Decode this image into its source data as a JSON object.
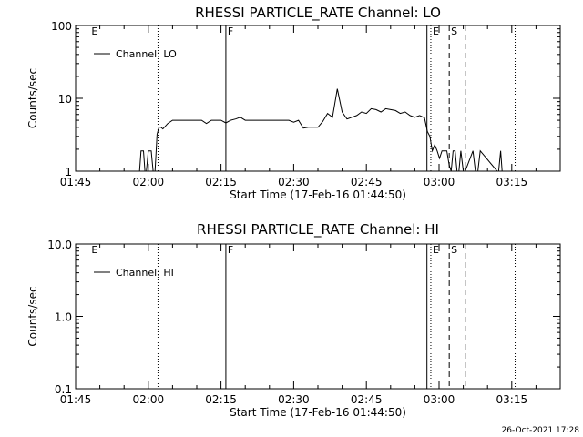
{
  "stamp": "26-Oct-2021 17:28",
  "chart_data": [
    {
      "type": "line",
      "title": "RHESSI PARTICLE_RATE Channel: LO",
      "xlabel": "Start Time (17-Feb-16 01:44:50)",
      "ylabel": "Counts/sec",
      "yscale": "log",
      "ylim": [
        1,
        100
      ],
      "xlim_minutes": [
        0,
        100
      ],
      "x_ticks": [
        "01:45",
        "02:00",
        "02:15",
        "02:30",
        "02:45",
        "03:00",
        "03:15"
      ],
      "y_ticks": [
        "1",
        "10",
        "100"
      ],
      "legend": "Channel: LO",
      "markers": [
        {
          "t": 2.9,
          "label": "E",
          "style": "text"
        },
        {
          "t": 17.0,
          "label": "",
          "style": "dotted"
        },
        {
          "t": 31.0,
          "label": "F",
          "style": "solid"
        },
        {
          "t": 72.5,
          "label": "",
          "style": "solid"
        },
        {
          "t": 73.3,
          "label": "E",
          "style": "dotted"
        },
        {
          "t": 77.1,
          "label": "S",
          "style": "dashed"
        },
        {
          "t": 80.4,
          "label": "",
          "style": "dashed"
        },
        {
          "t": 90.7,
          "label": "",
          "style": "dotted"
        }
      ],
      "series": [
        {
          "name": "Channel: LO",
          "t": [
            12.9,
            13.2,
            13.5,
            13.8,
            14.0,
            14.3,
            14.6,
            15.0,
            15.3,
            15.6,
            16.0,
            16.4,
            16.8,
            17.2,
            17.6,
            18.0,
            19,
            20,
            21,
            22,
            23,
            24,
            25,
            26,
            27,
            28,
            29,
            30,
            31,
            32,
            33,
            34,
            35,
            36,
            37,
            38,
            39,
            40,
            41,
            42,
            43,
            44,
            45,
            46,
            47,
            48,
            49,
            50,
            51,
            52,
            53,
            54,
            55,
            56,
            57,
            58,
            59,
            60,
            61,
            62,
            63,
            64,
            65,
            66,
            67,
            68,
            69,
            70,
            71,
            72,
            72.6,
            73.1,
            73.6,
            74.1,
            74.6,
            75.1,
            75.6,
            76.1,
            76.6,
            77.1,
            77.5,
            77.9,
            78.3,
            78.7,
            79.1,
            79.5,
            80.0,
            80.4,
            82.0,
            82.5,
            83.0,
            83.5,
            87.0,
            87.3,
            87.7,
            88.0
          ],
          "values": [
            1,
            1,
            1.9,
            1.9,
            1.9,
            1,
            1,
            1.9,
            1.9,
            1.9,
            1,
            1,
            3.2,
            4,
            4,
            3.8,
            4.5,
            5,
            5,
            5,
            5,
            5,
            5,
            5,
            4.5,
            5,
            5,
            5,
            4.6,
            5,
            5.2,
            5.5,
            5,
            5,
            5,
            5,
            5,
            5,
            5,
            5,
            5,
            5,
            4.7,
            5,
            3.9,
            4,
            4,
            4,
            4.8,
            6.2,
            5.5,
            13.5,
            6.5,
            5.2,
            5.5,
            5.8,
            6.5,
            6.2,
            7.2,
            7,
            6.5,
            7.2,
            7,
            6.8,
            6.2,
            6.5,
            5.8,
            5.5,
            5.8,
            5.4,
            3.5,
            3,
            1.9,
            2.3,
            1.9,
            1.5,
            1.9,
            1.9,
            1.9,
            1.2,
            1,
            1.9,
            1.9,
            1,
            1,
            1.9,
            1,
            1,
            1.9,
            1,
            1,
            1.9,
            1,
            1,
            1.9,
            1
          ]
        }
      ]
    },
    {
      "type": "line",
      "title": "RHESSI PARTICLE_RATE Channel: HI",
      "xlabel": "Start Time (17-Feb-16 01:44:50)",
      "ylabel": "Counts/sec",
      "yscale": "log",
      "ylim": [
        0.1,
        10
      ],
      "xlim_minutes": [
        0,
        100
      ],
      "x_ticks": [
        "01:45",
        "02:00",
        "02:15",
        "02:30",
        "02:45",
        "03:00",
        "03:15"
      ],
      "y_ticks": [
        "0.1",
        "1.0",
        "10.0"
      ],
      "legend": "Channel: HI",
      "markers": [
        {
          "t": 2.9,
          "label": "E",
          "style": "text"
        },
        {
          "t": 17.0,
          "label": "",
          "style": "dotted"
        },
        {
          "t": 31.0,
          "label": "F",
          "style": "solid"
        },
        {
          "t": 72.5,
          "label": "",
          "style": "solid"
        },
        {
          "t": 73.3,
          "label": "E",
          "style": "dotted"
        },
        {
          "t": 77.1,
          "label": "S",
          "style": "dashed"
        },
        {
          "t": 80.4,
          "label": "",
          "style": "dashed"
        },
        {
          "t": 90.7,
          "label": "",
          "style": "dotted"
        }
      ],
      "series": [
        {
          "name": "Channel: HI",
          "t": [],
          "values": []
        }
      ]
    }
  ]
}
